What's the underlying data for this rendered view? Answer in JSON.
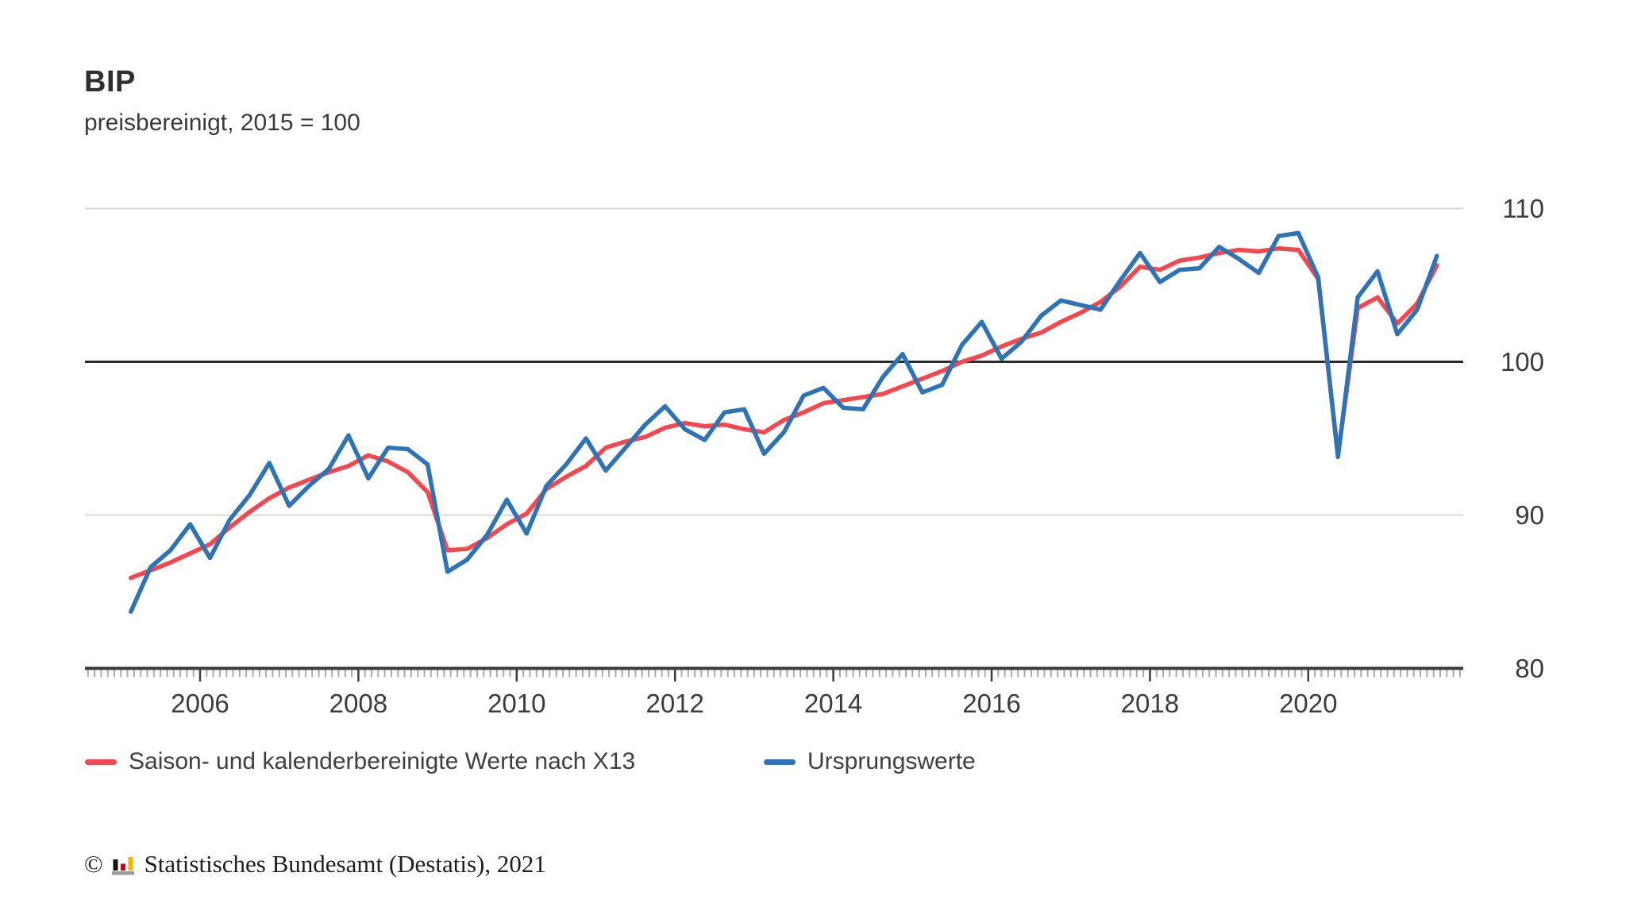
{
  "header": {
    "title": "BIP",
    "subtitle": "preisbereinigt, 2015 = 100"
  },
  "legend": {
    "items": [
      {
        "label": "Saison- und kalenderbereinigte Werte nach X13",
        "color": "#f3484f"
      },
      {
        "label": "Ursprungswerte",
        "color": "#2e73b4"
      }
    ]
  },
  "footer": {
    "copyright_symbol": "©",
    "logo_icon": "destatis-bars-icon",
    "source_text": "Statistisches Bundesamt (Destatis), 2021"
  },
  "chart_data": {
    "type": "line",
    "title": "BIP",
    "subtitle": "preisbereinigt, 2015 = 100",
    "x_unit": "quarterly",
    "x_range": [
      "2005 Q1",
      "2021 Q3"
    ],
    "x_axis_tick_years": [
      2006,
      2008,
      2010,
      2012,
      2014,
      2016,
      2018,
      2020
    ],
    "y_axis_ticks": [
      80,
      90,
      100,
      110
    ],
    "ylim": [
      80,
      110
    ],
    "reference_line_value": 100,
    "grid": "horizontal-light",
    "legend_position": "bottom-left",
    "colors": {
      "adjusted_line": "#f3484f",
      "original_line": "#2e73b4",
      "gridline": "#d9d9d9",
      "reference_line": "#2b2b2b",
      "axis_line": "#3c3c3c",
      "small_tick": "#ababab",
      "label_text": "#3c3c3c"
    },
    "series": [
      {
        "name": "Saison- und kalenderbereinigte Werte nach X13",
        "color": "#f3484f",
        "values": [
          85.9,
          86.4,
          86.9,
          87.5,
          88.1,
          89.2,
          90.2,
          91.1,
          91.8,
          92.3,
          92.8,
          93.2,
          93.9,
          93.5,
          92.8,
          91.5,
          87.7,
          87.8,
          88.5,
          89.4,
          90.1,
          91.7,
          92.5,
          93.2,
          94.4,
          94.8,
          95.1,
          95.7,
          96.0,
          95.8,
          95.9,
          95.6,
          95.4,
          96.2,
          96.7,
          97.3,
          97.5,
          97.7,
          97.9,
          98.4,
          98.9,
          99.4,
          100.0,
          100.4,
          101.0,
          101.5,
          101.9,
          102.6,
          103.2,
          103.9,
          104.9,
          106.2,
          106.0,
          106.6,
          106.8,
          107.1,
          107.3,
          107.2,
          107.4,
          107.3,
          105.4,
          93.9,
          103.5,
          104.2,
          102.5,
          103.8,
          106.3
        ]
      },
      {
        "name": "Ursprungswerte",
        "color": "#2e73b4",
        "values": [
          83.7,
          86.6,
          87.7,
          89.4,
          87.2,
          89.7,
          91.3,
          93.4,
          90.6,
          91.9,
          93.0,
          95.2,
          92.4,
          94.4,
          94.3,
          93.3,
          86.3,
          87.1,
          88.7,
          91.0,
          88.8,
          91.9,
          93.3,
          95.0,
          92.9,
          94.4,
          95.9,
          97.1,
          95.6,
          94.9,
          96.7,
          96.9,
          94.0,
          95.4,
          97.8,
          98.3,
          97.0,
          96.9,
          99.0,
          100.5,
          98.0,
          98.5,
          101.1,
          102.6,
          100.2,
          101.3,
          103.0,
          104.0,
          103.7,
          103.4,
          105.3,
          107.1,
          105.2,
          106.0,
          106.1,
          107.5,
          106.7,
          105.8,
          108.2,
          108.4,
          105.5,
          93.8,
          104.2,
          105.9,
          101.8,
          103.4,
          106.9
        ]
      }
    ]
  }
}
